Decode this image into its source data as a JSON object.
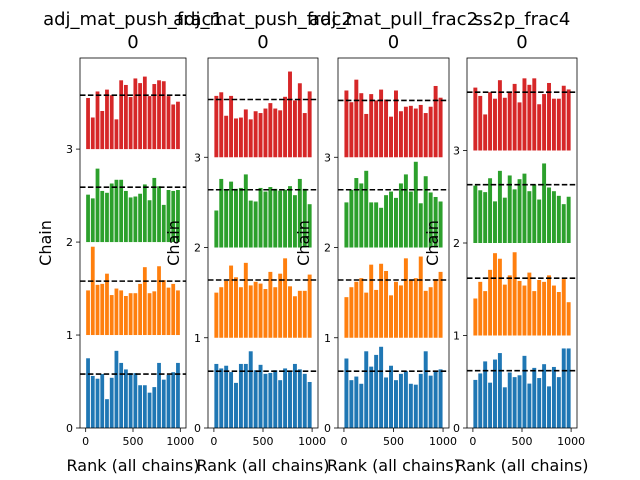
{
  "figure": {
    "xlabel": "Rank (all chains)",
    "ylabel": "Chain",
    "colors": [
      "#1f77b4",
      "#ff7f0e",
      "#2ca02c",
      "#d62728"
    ],
    "x_ticks": [
      0,
      500,
      1000
    ],
    "y_ticks": [
      0,
      1,
      2,
      3
    ]
  },
  "chart_data": [
    {
      "type": "bar",
      "title_line1": "adj_mat_push_frac1",
      "title_line2": "0",
      "xlabel": "Rank (all chains)",
      "ylabel": "Chain",
      "xlim": [
        -60,
        1060
      ],
      "ylim": [
        0,
        3.98
      ],
      "bins": [
        0,
        50,
        100,
        150,
        200,
        250,
        300,
        350,
        400,
        450,
        500,
        550,
        600,
        650,
        700,
        750,
        800,
        850,
        900,
        950
      ],
      "series": [
        {
          "chain": 0,
          "offset": 0,
          "mean": 0.58,
          "heights": [
            0.75,
            0.56,
            0.53,
            0.58,
            0.31,
            0.54,
            0.83,
            0.7,
            0.63,
            0.59,
            0.59,
            0.46,
            0.46,
            0.38,
            0.44,
            0.7,
            0.52,
            0.57,
            0.6,
            0.7
          ]
        },
        {
          "chain": 1,
          "offset": 1,
          "mean": 0.58,
          "heights": [
            0.48,
            0.95,
            0.54,
            0.55,
            0.66,
            0.43,
            0.5,
            0.48,
            0.42,
            0.45,
            0.45,
            0.55,
            0.73,
            0.45,
            0.47,
            0.74,
            0.59,
            0.51,
            0.55,
            0.48
          ]
        },
        {
          "chain": 2,
          "offset": 2,
          "mean": 0.59,
          "heights": [
            0.51,
            0.47,
            0.79,
            0.55,
            0.53,
            0.63,
            0.67,
            0.67,
            0.55,
            0.48,
            0.49,
            0.52,
            0.62,
            0.45,
            0.69,
            0.6,
            0.4,
            0.56,
            0.55,
            0.56
          ]
        },
        {
          "chain": 3,
          "offset": 3,
          "mean": 0.58,
          "heights": [
            0.55,
            0.34,
            0.62,
            0.41,
            0.64,
            0.58,
            0.32,
            0.74,
            0.69,
            0.56,
            0.76,
            0.71,
            0.78,
            0.57,
            0.7,
            0.74,
            0.73,
            0.57,
            0.48,
            0.51
          ]
        }
      ]
    },
    {
      "type": "bar",
      "title_line1": "adj_mat_push_frac2",
      "title_line2": "0",
      "xlabel": "Rank (all chains)",
      "ylabel": "Chain",
      "xlim": [
        -60,
        1060
      ],
      "ylim": [
        0,
        4.1
      ],
      "bins": [
        0,
        50,
        100,
        150,
        200,
        250,
        300,
        350,
        400,
        450,
        500,
        550,
        600,
        650,
        700,
        750,
        800,
        850,
        900,
        950
      ],
      "series": [
        {
          "chain": 0,
          "offset": 0,
          "mean": 0.63,
          "heights": [
            0.71,
            0.66,
            0.69,
            0.62,
            0.5,
            0.71,
            0.71,
            0.85,
            0.64,
            0.7,
            0.6,
            0.61,
            0.64,
            0.53,
            0.66,
            0.62,
            0.71,
            0.65,
            0.6,
            0.51
          ]
        },
        {
          "chain": 1,
          "offset": 1,
          "mean": 0.64,
          "heights": [
            0.5,
            0.56,
            0.63,
            0.8,
            0.67,
            0.56,
            0.83,
            0.58,
            0.62,
            0.6,
            0.54,
            0.73,
            0.56,
            0.71,
            0.88,
            0.57,
            0.46,
            0.52,
            0.52,
            0.7
          ]
        },
        {
          "chain": 2,
          "offset": 2,
          "mean": 0.64,
          "heights": [
            0.41,
            0.76,
            0.64,
            0.73,
            0.65,
            0.66,
            0.81,
            0.52,
            0.51,
            0.66,
            0.62,
            0.67,
            0.65,
            0.63,
            0.64,
            0.68,
            0.58,
            0.76,
            0.65,
            0.48
          ]
        },
        {
          "chain": 3,
          "offset": 3,
          "mean": 0.64,
          "heights": [
            0.68,
            0.72,
            0.46,
            0.68,
            0.43,
            0.44,
            0.53,
            0.42,
            0.51,
            0.49,
            0.54,
            0.6,
            0.54,
            0.52,
            0.67,
            0.95,
            0.63,
            0.82,
            0.49,
            0.73
          ]
        }
      ]
    },
    {
      "type": "bar",
      "title_line1": "adj_mat_pull_frac2",
      "title_line2": "0",
      "xlabel": "Rank (all chains)",
      "ylabel": "Chain",
      "xlim": [
        -60,
        1060
      ],
      "ylim": [
        0,
        4.1
      ],
      "bins": [
        0,
        50,
        100,
        150,
        200,
        250,
        300,
        350,
        400,
        450,
        500,
        550,
        600,
        650,
        700,
        750,
        800,
        850,
        900,
        950
      ],
      "series": [
        {
          "chain": 0,
          "offset": 0,
          "mean": 0.63,
          "heights": [
            0.77,
            0.53,
            0.57,
            0.49,
            0.85,
            0.68,
            0.81,
            0.9,
            0.56,
            0.69,
            0.53,
            0.6,
            0.63,
            0.49,
            0.48,
            0.6,
            0.85,
            0.58,
            0.63,
            0.65
          ]
        },
        {
          "chain": 1,
          "offset": 1,
          "mean": 0.64,
          "heights": [
            0.45,
            0.56,
            0.62,
            0.66,
            0.5,
            0.81,
            0.53,
            0.82,
            0.74,
            0.47,
            0.62,
            0.58,
            0.88,
            0.64,
            0.66,
            0.9,
            0.52,
            0.56,
            0.65,
            0.73
          ]
        },
        {
          "chain": 2,
          "offset": 2,
          "mean": 0.64,
          "heights": [
            0.5,
            0.64,
            0.77,
            0.71,
            0.85,
            0.5,
            0.5,
            0.44,
            0.58,
            0.62,
            0.55,
            0.71,
            0.81,
            0.62,
            0.95,
            0.49,
            0.79,
            0.61,
            0.56,
            0.51
          ]
        },
        {
          "chain": 3,
          "offset": 3,
          "mean": 0.63,
          "heights": [
            0.74,
            0.61,
            0.86,
            0.71,
            0.48,
            0.7,
            0.63,
            0.75,
            0.64,
            0.45,
            0.74,
            0.51,
            0.56,
            0.57,
            0.54,
            0.58,
            0.49,
            0.56,
            0.79,
            0.66
          ]
        }
      ]
    },
    {
      "type": "bar",
      "title_line1": "ss2p_frac4",
      "title_line2": "0",
      "xlabel": "Rank (all chains)",
      "ylabel": "Chain",
      "xlim": [
        -60,
        1060
      ],
      "ylim": [
        0,
        4.0
      ],
      "bins": [
        0,
        50,
        100,
        150,
        200,
        250,
        300,
        350,
        400,
        450,
        500,
        550,
        600,
        650,
        700,
        750,
        800,
        850,
        900,
        950
      ],
      "series": [
        {
          "chain": 0,
          "offset": 0,
          "mean": 0.62,
          "heights": [
            0.52,
            0.59,
            0.72,
            0.49,
            0.74,
            0.81,
            0.44,
            0.6,
            0.55,
            0.57,
            0.78,
            0.48,
            0.65,
            0.54,
            0.69,
            0.45,
            0.66,
            0.55,
            0.86,
            0.86
          ]
        },
        {
          "chain": 1,
          "offset": 1,
          "mean": 0.62,
          "heights": [
            0.4,
            0.58,
            0.48,
            0.71,
            0.89,
            0.83,
            0.55,
            0.65,
            0.9,
            0.59,
            0.54,
            0.68,
            0.48,
            0.6,
            0.58,
            0.65,
            0.54,
            0.47,
            0.61,
            0.36
          ]
        },
        {
          "chain": 2,
          "offset": 2,
          "mean": 0.63,
          "heights": [
            0.62,
            0.57,
            0.55,
            0.7,
            0.45,
            0.78,
            0.49,
            0.73,
            0.58,
            0.69,
            0.75,
            0.56,
            0.63,
            0.47,
            0.86,
            0.6,
            0.56,
            0.51,
            0.42,
            0.5
          ]
        },
        {
          "chain": 3,
          "offset": 3,
          "mean": 0.63,
          "heights": [
            0.68,
            0.59,
            0.39,
            0.63,
            0.56,
            0.76,
            0.57,
            0.63,
            0.72,
            0.52,
            0.78,
            0.71,
            0.78,
            0.5,
            0.61,
            0.73,
            0.56,
            0.56,
            0.7,
            0.66
          ]
        }
      ]
    }
  ]
}
